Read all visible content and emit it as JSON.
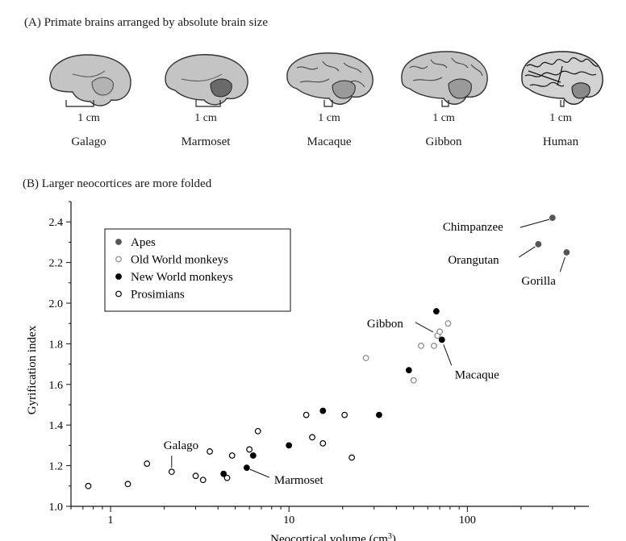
{
  "panel_a": {
    "title": "(A) Primate brains arranged by absolute brain size",
    "scale_label": "1 cm",
    "brains": [
      {
        "name": "Galago"
      },
      {
        "name": "Marmoset"
      },
      {
        "name": "Macaque"
      },
      {
        "name": "Gibbon"
      },
      {
        "name": "Human"
      }
    ]
  },
  "panel_b": {
    "title": "(B) Larger neocortices are more folded"
  },
  "chart_data": {
    "type": "scatter",
    "title": "(B) Larger neocortices are more folded",
    "xlabel": "Neocortical volume (cm3)",
    "ylabel": "Gyrification index",
    "xscale": "log",
    "xlim": [
      0.6,
      480
    ],
    "ylim": [
      1.0,
      2.5
    ],
    "x_ticks": [
      1,
      10,
      100
    ],
    "y_ticks": [
      1.0,
      1.2,
      1.4,
      1.6,
      1.8,
      2.0,
      2.2,
      2.4
    ],
    "grid": false,
    "legend_position": "top-left",
    "series": [
      {
        "name": "Apes",
        "marker": "filled",
        "color": "#555555",
        "points": [
          [
            300,
            2.42
          ],
          [
            250,
            2.29
          ],
          [
            360,
            2.25
          ]
        ]
      },
      {
        "name": "Old World monkeys",
        "marker": "open",
        "color": "#888888",
        "points": [
          [
            27,
            1.73
          ],
          [
            50,
            1.62
          ],
          [
            55,
            1.79
          ],
          [
            65,
            1.79
          ],
          [
            68,
            1.84
          ],
          [
            70,
            1.86
          ],
          [
            78,
            1.9
          ]
        ]
      },
      {
        "name": "New World monkeys",
        "marker": "filled",
        "color": "#000000",
        "points": [
          [
            4.3,
            1.16
          ],
          [
            5.8,
            1.19
          ],
          [
            6.3,
            1.25
          ],
          [
            10,
            1.3
          ],
          [
            15.5,
            1.47
          ],
          [
            32,
            1.45
          ],
          [
            47,
            1.67
          ],
          [
            67,
            1.96
          ],
          [
            72,
            1.82
          ]
        ]
      },
      {
        "name": "Prosimians",
        "marker": "open",
        "color": "#000000",
        "points": [
          [
            0.75,
            1.1
          ],
          [
            1.25,
            1.11
          ],
          [
            1.6,
            1.21
          ],
          [
            2.2,
            1.17
          ],
          [
            3.0,
            1.15
          ],
          [
            3.3,
            1.13
          ],
          [
            3.6,
            1.27
          ],
          [
            4.5,
            1.14
          ],
          [
            4.8,
            1.25
          ],
          [
            6.0,
            1.28
          ],
          [
            6.7,
            1.37
          ],
          [
            12.5,
            1.45
          ],
          [
            13.5,
            1.34
          ],
          [
            15.5,
            1.31
          ],
          [
            20.5,
            1.45
          ],
          [
            22.5,
            1.24
          ]
        ]
      }
    ],
    "annotations": [
      {
        "text": "Chimpanzee",
        "point": [
          300,
          2.42
        ]
      },
      {
        "text": "Orangutan",
        "point": [
          250,
          2.29
        ]
      },
      {
        "text": "Gorilla",
        "point": [
          360,
          2.25
        ]
      },
      {
        "text": "Gibbon",
        "point": [
          67,
          1.85
        ]
      },
      {
        "text": "Macaque",
        "point": [
          72,
          1.82
        ]
      },
      {
        "text": "Galago",
        "point": [
          2.2,
          1.17
        ]
      },
      {
        "text": "Marmoset",
        "point": [
          5.8,
          1.19
        ]
      }
    ]
  }
}
